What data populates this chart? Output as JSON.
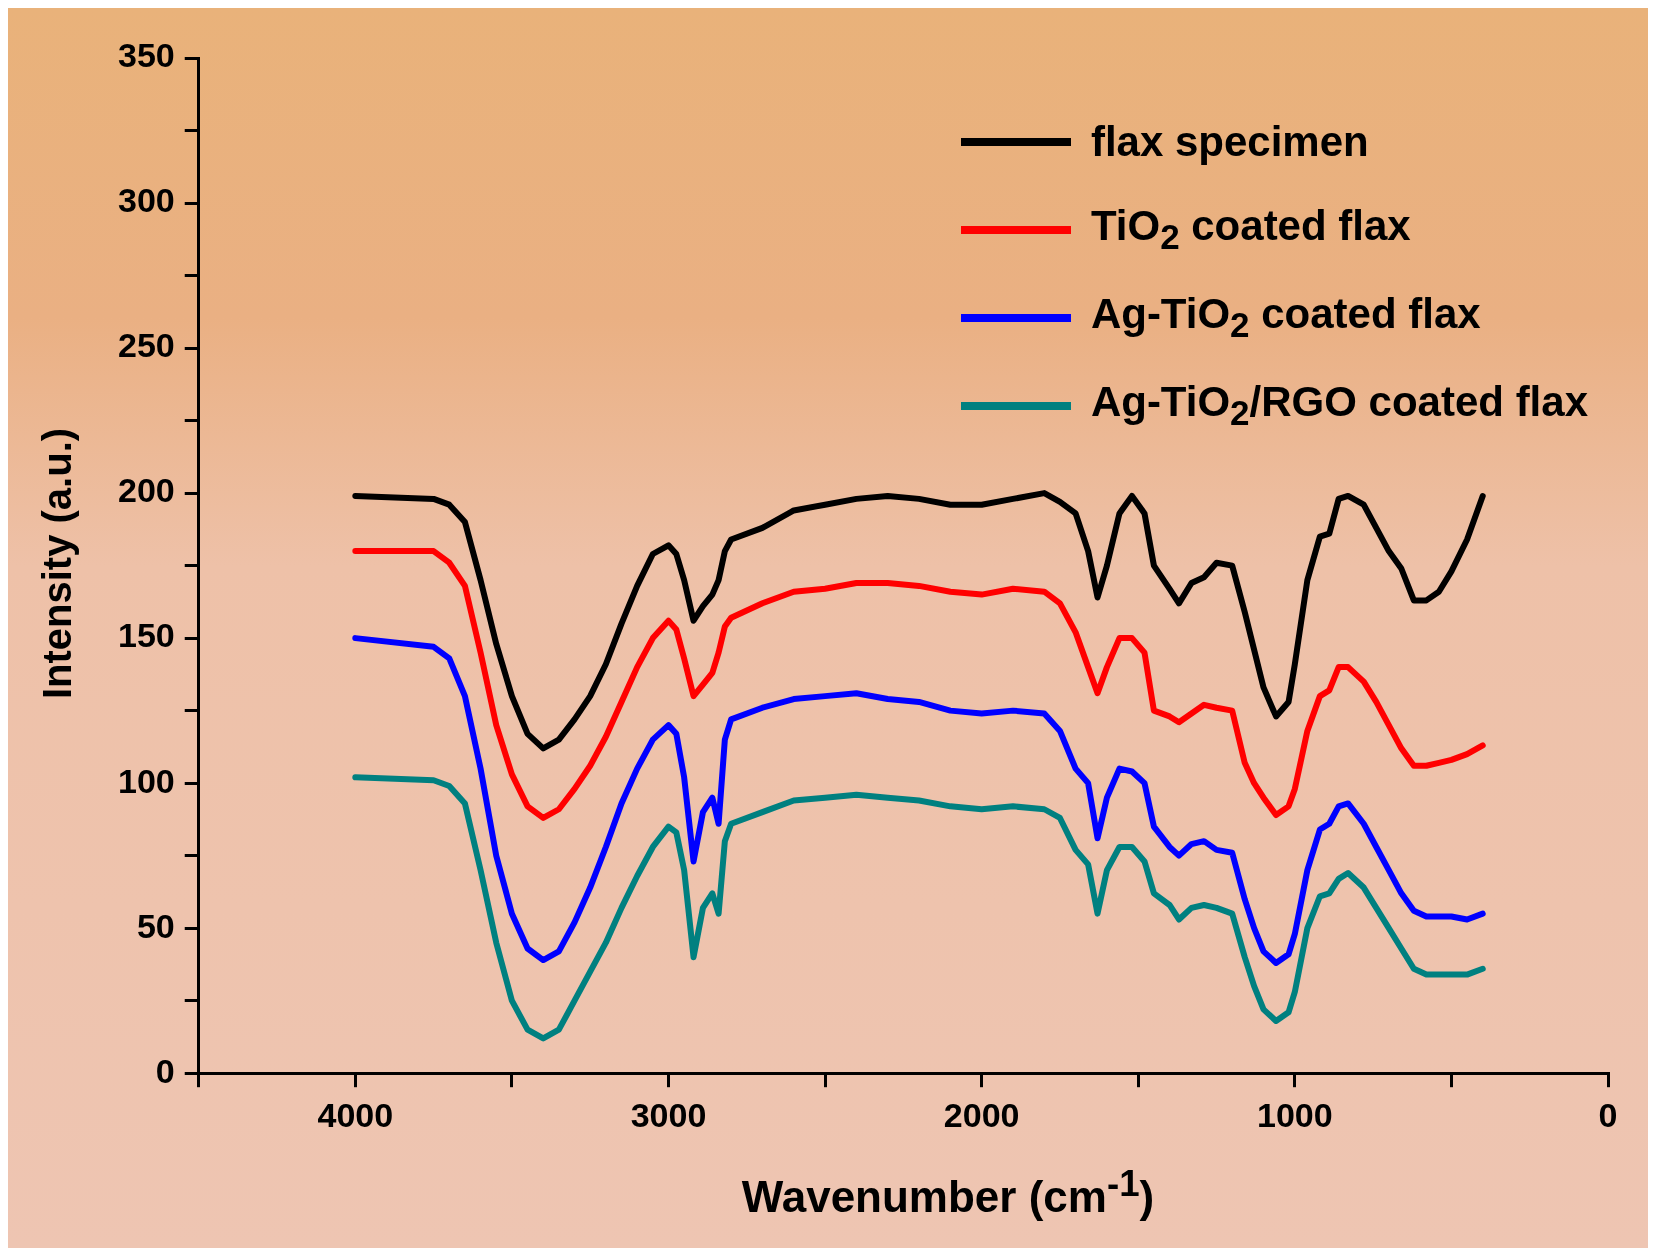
{
  "chart_data": {
    "type": "line",
    "xlabel": "Wavenumber (cm$^{-1}$)",
    "ylabel": "Intensity (a.u.)",
    "x": [
      4000,
      3750,
      3700,
      3650,
      3600,
      3550,
      3500,
      3450,
      3400,
      3350,
      3300,
      3250,
      3200,
      3150,
      3100,
      3050,
      3000,
      2975,
      2950,
      2920,
      2890,
      2860,
      2840,
      2820,
      2800,
      2700,
      2600,
      2500,
      2400,
      2300,
      2200,
      2100,
      2000,
      1900,
      1800,
      1750,
      1700,
      1660,
      1630,
      1600,
      1560,
      1520,
      1480,
      1450,
      1400,
      1370,
      1330,
      1290,
      1250,
      1200,
      1160,
      1130,
      1100,
      1060,
      1020,
      1000,
      960,
      920,
      890,
      860,
      830,
      780,
      740,
      700,
      660,
      620,
      580,
      540,
      500,
      450,
      400
    ],
    "series": [
      {
        "name": "flax specimen",
        "color": "#000000",
        "values": [
          199,
          198,
          196,
          190,
          170,
          148,
          130,
          117,
          112,
          115,
          122,
          130,
          141,
          155,
          168,
          179,
          182,
          179,
          170,
          156,
          161,
          165,
          170,
          180,
          184,
          188,
          194,
          196,
          198,
          199,
          198,
          196,
          196,
          198,
          200,
          197,
          193,
          180,
          164,
          175,
          193,
          199,
          193,
          175,
          167,
          162,
          169,
          171,
          176,
          175,
          159,
          146,
          133,
          123,
          128,
          141,
          170,
          185,
          186,
          198,
          199,
          196,
          188,
          180,
          174,
          163,
          163,
          166,
          173,
          184,
          199
        ]
      },
      {
        "name": "TiO$_{2}$ coated flax",
        "color": "#ff0000",
        "values": [
          180,
          180,
          176,
          168,
          145,
          120,
          103,
          92,
          88,
          91,
          98,
          106,
          116,
          128,
          140,
          150,
          156,
          153,
          143,
          130,
          134,
          138,
          145,
          154,
          157,
          162,
          166,
          167,
          169,
          169,
          168,
          166,
          165,
          167,
          166,
          162,
          152,
          140,
          131,
          140,
          150,
          150,
          145,
          125,
          123,
          121,
          124,
          127,
          126,
          125,
          107,
          100,
          95,
          89,
          92,
          98,
          118,
          130,
          132,
          140,
          140,
          135,
          128,
          120,
          112,
          106,
          106,
          107,
          108,
          110,
          113
        ]
      },
      {
        "name": "Ag-TiO$_{2}$ coated flax",
        "color": "#0000ff",
        "values": [
          150,
          147,
          143,
          130,
          105,
          75,
          55,
          43,
          39,
          42,
          52,
          64,
          78,
          93,
          105,
          115,
          120,
          117,
          102,
          73,
          90,
          95,
          86,
          115,
          122,
          126,
          129,
          130,
          131,
          129,
          128,
          125,
          124,
          125,
          124,
          118,
          105,
          100,
          81,
          95,
          105,
          104,
          100,
          85,
          78,
          75,
          79,
          80,
          77,
          76,
          60,
          50,
          42,
          38,
          41,
          48,
          70,
          84,
          86,
          92,
          93,
          86,
          78,
          70,
          62,
          56,
          54,
          54,
          54,
          53,
          55
        ]
      },
      {
        "name": "Ag-TiO$_{2}$/RGO coated flax",
        "color": "#008080",
        "values": [
          102,
          101,
          99,
          93,
          70,
          45,
          25,
          15,
          12,
          15,
          25,
          35,
          45,
          57,
          68,
          78,
          85,
          83,
          70,
          40,
          57,
          62,
          55,
          80,
          86,
          90,
          94,
          95,
          96,
          95,
          94,
          92,
          91,
          92,
          91,
          88,
          77,
          72,
          55,
          70,
          78,
          78,
          73,
          62,
          58,
          53,
          57,
          58,
          57,
          55,
          40,
          30,
          22,
          18,
          21,
          28,
          50,
          61,
          62,
          67,
          69,
          64,
          57,
          50,
          43,
          36,
          34,
          34,
          34,
          34,
          36
        ]
      }
    ],
    "xlim": [
      4500,
      0
    ],
    "xticks": [
      {
        "value": 4500,
        "label": null
      },
      4000,
      {
        "value": 3500,
        "label": null
      },
      3000,
      {
        "value": 2500,
        "label": null
      },
      2000,
      {
        "value": 1500,
        "label": null
      },
      1000,
      {
        "value": 500,
        "label": null
      },
      0
    ],
    "ylim": [
      0,
      350
    ],
    "yticks": [
      0,
      {
        "value": 25,
        "label": null
      },
      50,
      {
        "value": 75,
        "label": null
      },
      100,
      {
        "value": 125,
        "label": null
      },
      150,
      {
        "value": 175,
        "label": null
      },
      200,
      {
        "value": 225,
        "label": null
      },
      250,
      {
        "value": 275,
        "label": null
      },
      300,
      {
        "value": 325,
        "label": null
      },
      350
    ],
    "grid": false,
    "legend": "top right",
    "marker": "none",
    "line_style": "solid"
  }
}
